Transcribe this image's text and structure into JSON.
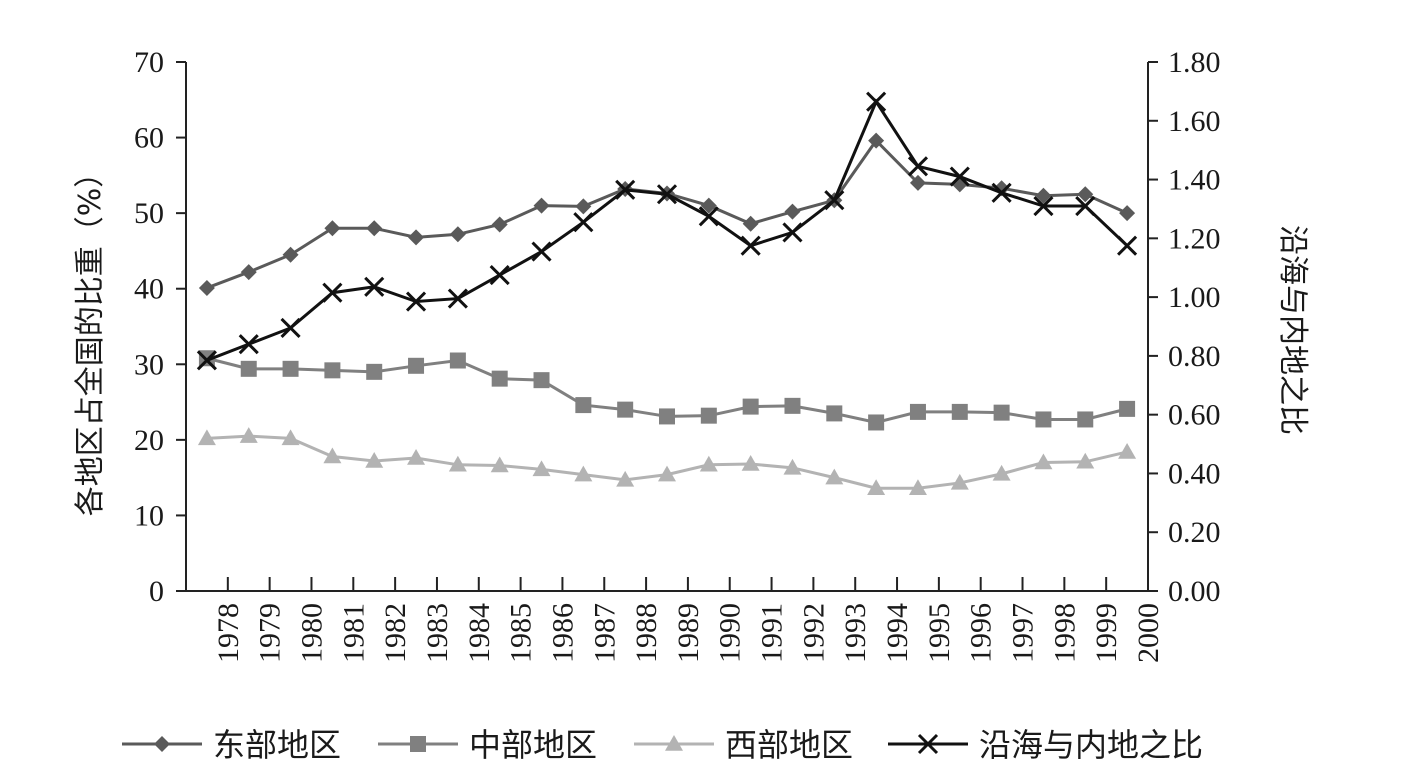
{
  "chart_data": {
    "type": "line",
    "title": "",
    "categories": [
      "1978",
      "1979",
      "1980",
      "1981",
      "1982",
      "1983",
      "1984",
      "1985",
      "1986",
      "1987",
      "1988",
      "1989",
      "1990",
      "1991",
      "1992",
      "1993",
      "1994",
      "1995",
      "1996",
      "1997",
      "1998",
      "1999",
      "2000"
    ],
    "ylabel_left": "各地区占全国的比重（%）",
    "ylabel_right": "沿海与内地之比",
    "ylim_left": [
      0,
      70
    ],
    "ylim_right": [
      0,
      1.8
    ],
    "yticks_left": [
      "0",
      "10",
      "20",
      "30",
      "40",
      "50",
      "60",
      "70"
    ],
    "yticks_right": [
      "0.00",
      "0.20",
      "0.40",
      "0.60",
      "0.80",
      "1.00",
      "1.20",
      "1.40",
      "1.60",
      "1.80"
    ],
    "grid": false,
    "legend_position": "bottom",
    "series": [
      {
        "name": "东部地区",
        "axis": "left",
        "marker": "diamond",
        "color": "#5a5a5a",
        "values": [
          40.1,
          42.2,
          44.5,
          48.0,
          48.0,
          46.8,
          47.2,
          48.5,
          51.0,
          50.9,
          53.2,
          52.6,
          51.0,
          48.6,
          50.2,
          51.7,
          59.6,
          54.0,
          53.8,
          53.3,
          52.3,
          52.5,
          50.0
        ]
      },
      {
        "name": "中部地区",
        "axis": "left",
        "marker": "square",
        "color": "#808080",
        "values": [
          30.8,
          29.4,
          29.4,
          29.2,
          29.0,
          29.8,
          30.5,
          28.1,
          27.9,
          24.6,
          24.0,
          23.1,
          23.2,
          24.4,
          24.5,
          23.5,
          22.3,
          23.7,
          23.7,
          23.6,
          22.7,
          22.7,
          24.1
        ]
      },
      {
        "name": "西部地区",
        "axis": "left",
        "marker": "triangle",
        "color": "#b3b3b3",
        "values": [
          20.2,
          20.5,
          20.2,
          17.8,
          17.2,
          17.6,
          16.7,
          16.6,
          16.1,
          15.4,
          14.7,
          15.4,
          16.7,
          16.8,
          16.3,
          15.0,
          13.6,
          13.6,
          14.3,
          15.5,
          17.0,
          17.1,
          18.4
        ]
      },
      {
        "name": "沿海与内地之比",
        "axis": "right",
        "marker": "x",
        "color": "#111111",
        "values": [
          0.785,
          0.84,
          0.895,
          1.015,
          1.035,
          0.985,
          0.995,
          1.075,
          1.155,
          1.255,
          1.365,
          1.35,
          1.275,
          1.175,
          1.22,
          1.33,
          1.665,
          1.445,
          1.41,
          1.355,
          1.31,
          1.31,
          1.175
        ]
      }
    ]
  }
}
